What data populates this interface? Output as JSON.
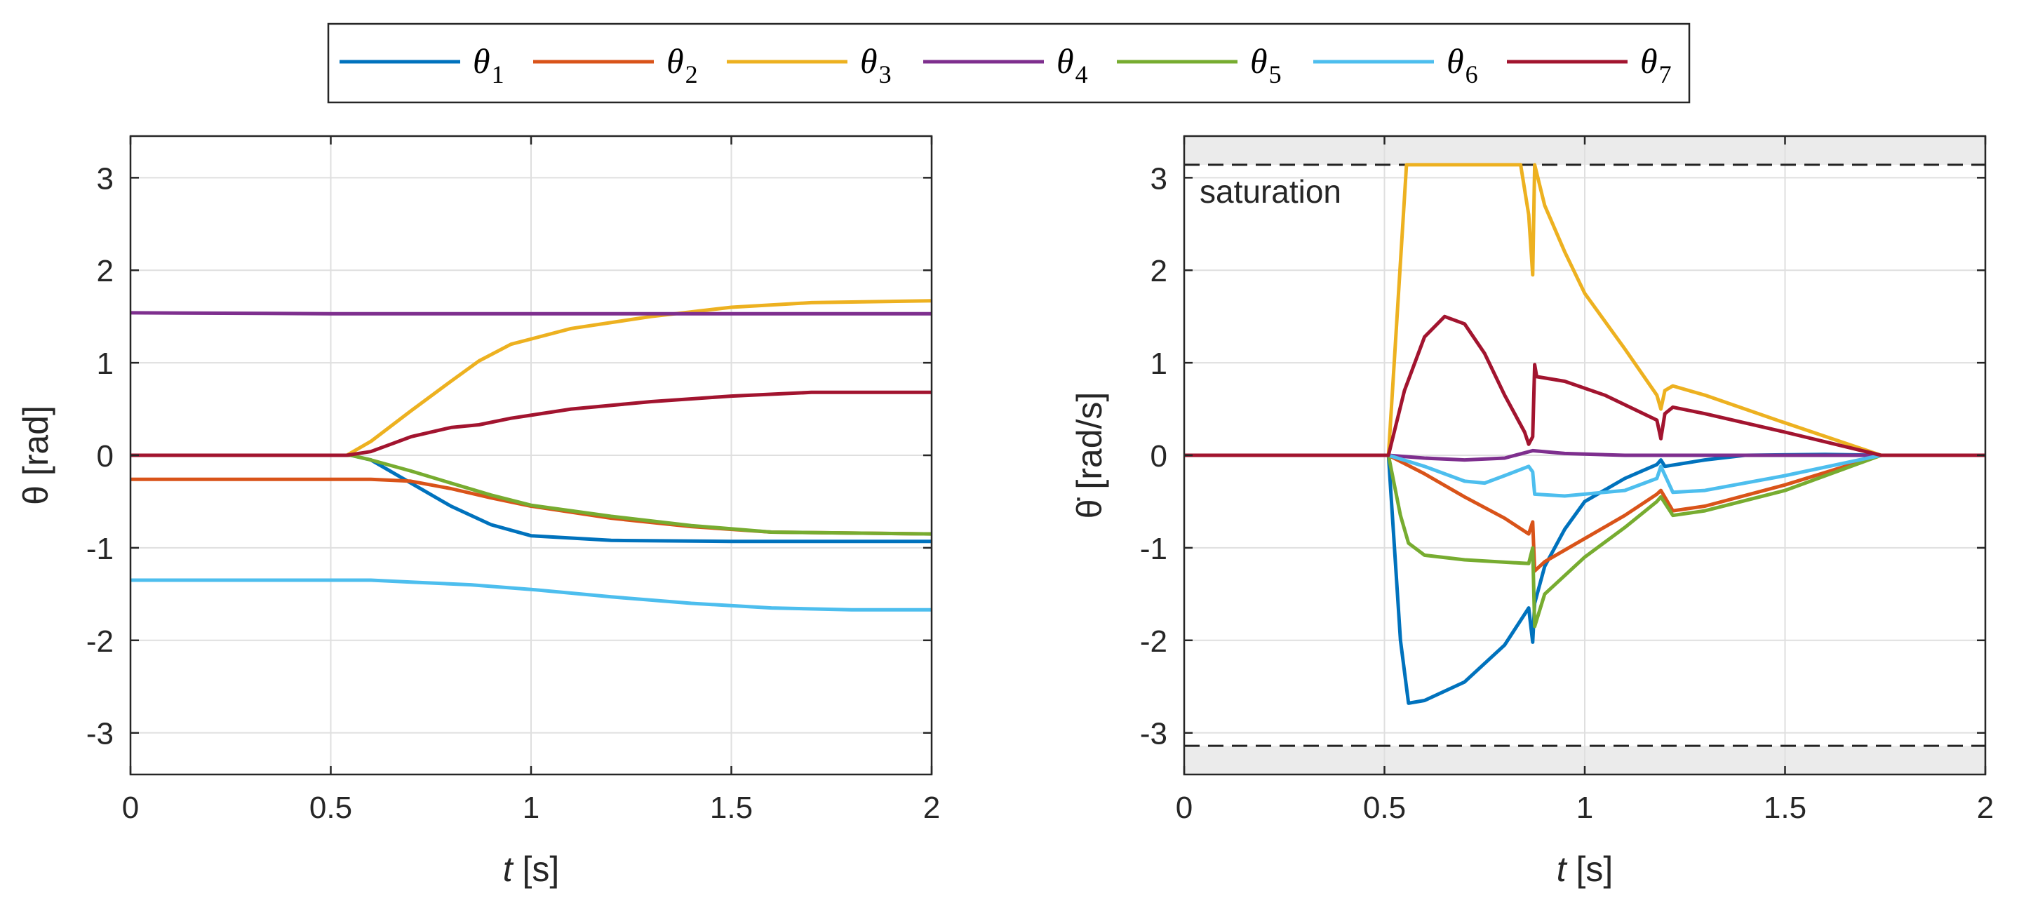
{
  "chart_data": [
    {
      "type": "line",
      "title": "",
      "xlabel": "t [s]",
      "xlabel_symbol": "t",
      "xlabel_unit": "[s]",
      "ylabel": "θ [rad]",
      "xlim": [
        0,
        2
      ],
      "ylim": [
        -3.45,
        3.45
      ],
      "xticks": [
        0,
        0.5,
        1,
        1.5,
        2
      ],
      "xtick_labels": [
        "0",
        "0.5",
        "1",
        "1.5",
        "2"
      ],
      "yticks": [
        -3,
        -2,
        -1,
        0,
        1,
        2,
        3
      ],
      "ytick_labels": [
        "-3",
        "-2",
        "-1",
        "0",
        "1",
        "2",
        "3"
      ],
      "grid": true,
      "series": [
        {
          "name": "θ1",
          "color": "#0072BD",
          "points": [
            [
              0,
              0
            ],
            [
              0.55,
              0
            ],
            [
              0.6,
              -0.05
            ],
            [
              0.7,
              -0.3
            ],
            [
              0.8,
              -0.55
            ],
            [
              0.9,
              -0.75
            ],
            [
              1.0,
              -0.87
            ],
            [
              1.2,
              -0.92
            ],
            [
              1.5,
              -0.93
            ],
            [
              2.0,
              -0.93
            ]
          ]
        },
        {
          "name": "θ2",
          "color": "#D95319",
          "points": [
            [
              0,
              -0.26
            ],
            [
              0.6,
              -0.26
            ],
            [
              0.7,
              -0.28
            ],
            [
              0.8,
              -0.36
            ],
            [
              0.9,
              -0.46
            ],
            [
              1.0,
              -0.55
            ],
            [
              1.2,
              -0.68
            ],
            [
              1.4,
              -0.77
            ],
            [
              1.6,
              -0.83
            ],
            [
              2.0,
              -0.85
            ]
          ]
        },
        {
          "name": "θ3",
          "color": "#EDB120",
          "points": [
            [
              0,
              0
            ],
            [
              0.54,
              0
            ],
            [
              0.6,
              0.15
            ],
            [
              0.7,
              0.48
            ],
            [
              0.8,
              0.8
            ],
            [
              0.87,
              1.02
            ],
            [
              0.95,
              1.2
            ],
            [
              1.1,
              1.37
            ],
            [
              1.3,
              1.5
            ],
            [
              1.5,
              1.6
            ],
            [
              1.7,
              1.65
            ],
            [
              2.0,
              1.67
            ]
          ]
        },
        {
          "name": "θ4",
          "color": "#7E2F8E",
          "points": [
            [
              0,
              1.54
            ],
            [
              0.5,
              1.53
            ],
            [
              1.0,
              1.53
            ],
            [
              2.0,
              1.53
            ]
          ]
        },
        {
          "name": "θ5",
          "color": "#77AC30",
          "points": [
            [
              0,
              0
            ],
            [
              0.55,
              0
            ],
            [
              0.6,
              -0.05
            ],
            [
              0.7,
              -0.17
            ],
            [
              0.8,
              -0.3
            ],
            [
              0.9,
              -0.43
            ],
            [
              1.0,
              -0.54
            ],
            [
              1.2,
              -0.66
            ],
            [
              1.4,
              -0.76
            ],
            [
              1.6,
              -0.83
            ],
            [
              2.0,
              -0.85
            ]
          ]
        },
        {
          "name": "θ6",
          "color": "#4DBEEE",
          "points": [
            [
              0,
              -1.35
            ],
            [
              0.6,
              -1.35
            ],
            [
              0.7,
              -1.37
            ],
            [
              0.85,
              -1.4
            ],
            [
              1.0,
              -1.45
            ],
            [
              1.2,
              -1.53
            ],
            [
              1.4,
              -1.6
            ],
            [
              1.6,
              -1.65
            ],
            [
              1.8,
              -1.67
            ],
            [
              2.0,
              -1.67
            ]
          ]
        },
        {
          "name": "θ7",
          "color": "#A2142F",
          "points": [
            [
              0,
              0
            ],
            [
              0.54,
              0
            ],
            [
              0.6,
              0.04
            ],
            [
              0.65,
              0.12
            ],
            [
              0.7,
              0.2
            ],
            [
              0.8,
              0.3
            ],
            [
              0.87,
              0.33
            ],
            [
              0.95,
              0.4
            ],
            [
              1.1,
              0.5
            ],
            [
              1.3,
              0.58
            ],
            [
              1.5,
              0.64
            ],
            [
              1.7,
              0.68
            ],
            [
              2.0,
              0.68
            ]
          ]
        }
      ]
    },
    {
      "type": "line",
      "title": "",
      "xlabel": "t [s]",
      "xlabel_symbol": "t",
      "xlabel_unit": "[s]",
      "ylabel": "θ̇ [rad/s]",
      "xlim": [
        0,
        2
      ],
      "ylim": [
        -3.45,
        3.45
      ],
      "xticks": [
        0,
        0.5,
        1,
        1.5,
        2
      ],
      "xtick_labels": [
        "0",
        "0.5",
        "1",
        "1.5",
        "2"
      ],
      "yticks": [
        -3,
        -2,
        -1,
        0,
        1,
        2,
        3
      ],
      "ytick_labels": [
        "-3",
        "-2",
        "-1",
        "0",
        "1",
        "2",
        "3"
      ],
      "grid": true,
      "saturation": {
        "value": 3.14,
        "label": "saturation"
      },
      "series": [
        {
          "name": "θ1",
          "color": "#0072BD",
          "points": [
            [
              0,
              0
            ],
            [
              0.51,
              0
            ],
            [
              0.54,
              -2.0
            ],
            [
              0.56,
              -2.68
            ],
            [
              0.6,
              -2.65
            ],
            [
              0.7,
              -2.45
            ],
            [
              0.8,
              -2.05
            ],
            [
              0.86,
              -1.65
            ],
            [
              0.87,
              -2.02
            ],
            [
              0.875,
              -1.6
            ],
            [
              0.9,
              -1.2
            ],
            [
              0.95,
              -0.8
            ],
            [
              1.0,
              -0.5
            ],
            [
              1.1,
              -0.25
            ],
            [
              1.18,
              -0.1
            ],
            [
              1.19,
              -0.05
            ],
            [
              1.2,
              -0.12
            ],
            [
              1.3,
              -0.05
            ],
            [
              1.4,
              0.0
            ],
            [
              1.6,
              0.01
            ],
            [
              1.74,
              0.0
            ],
            [
              2.0,
              0.0
            ]
          ]
        },
        {
          "name": "θ2",
          "color": "#D95319",
          "points": [
            [
              0,
              0
            ],
            [
              0.51,
              0
            ],
            [
              0.6,
              -0.2
            ],
            [
              0.7,
              -0.45
            ],
            [
              0.8,
              -0.68
            ],
            [
              0.86,
              -0.85
            ],
            [
              0.87,
              -0.72
            ],
            [
              0.875,
              -1.25
            ],
            [
              0.9,
              -1.15
            ],
            [
              1.0,
              -0.9
            ],
            [
              1.1,
              -0.65
            ],
            [
              1.18,
              -0.42
            ],
            [
              1.19,
              -0.38
            ],
            [
              1.22,
              -0.6
            ],
            [
              1.3,
              -0.55
            ],
            [
              1.5,
              -0.32
            ],
            [
              1.74,
              0.0
            ],
            [
              2.0,
              0.0
            ]
          ]
        },
        {
          "name": "θ3",
          "color": "#EDB120",
          "points": [
            [
              0,
              0
            ],
            [
              0.51,
              0
            ],
            [
              0.555,
              3.14
            ],
            [
              0.84,
              3.14
            ],
            [
              0.86,
              2.6
            ],
            [
              0.87,
              1.95
            ],
            [
              0.875,
              3.14
            ],
            [
              0.9,
              2.7
            ],
            [
              0.95,
              2.2
            ],
            [
              1.0,
              1.75
            ],
            [
              1.1,
              1.15
            ],
            [
              1.18,
              0.65
            ],
            [
              1.19,
              0.5
            ],
            [
              1.2,
              0.7
            ],
            [
              1.22,
              0.75
            ],
            [
              1.3,
              0.65
            ],
            [
              1.5,
              0.35
            ],
            [
              1.74,
              0.0
            ],
            [
              2.0,
              0.0
            ]
          ]
        },
        {
          "name": "θ4",
          "color": "#7E2F8E",
          "points": [
            [
              0,
              0
            ],
            [
              0.51,
              0
            ],
            [
              0.6,
              -0.03
            ],
            [
              0.7,
              -0.05
            ],
            [
              0.8,
              -0.03
            ],
            [
              0.87,
              0.05
            ],
            [
              0.95,
              0.02
            ],
            [
              1.1,
              0.0
            ],
            [
              1.74,
              0.0
            ],
            [
              2.0,
              0.0
            ]
          ]
        },
        {
          "name": "θ5",
          "color": "#77AC30",
          "points": [
            [
              0,
              0
            ],
            [
              0.51,
              0
            ],
            [
              0.54,
              -0.65
            ],
            [
              0.56,
              -0.95
            ],
            [
              0.6,
              -1.08
            ],
            [
              0.7,
              -1.13
            ],
            [
              0.86,
              -1.17
            ],
            [
              0.87,
              -1.0
            ],
            [
              0.875,
              -1.85
            ],
            [
              0.9,
              -1.5
            ],
            [
              1.0,
              -1.1
            ],
            [
              1.1,
              -0.78
            ],
            [
              1.18,
              -0.5
            ],
            [
              1.19,
              -0.45
            ],
            [
              1.22,
              -0.65
            ],
            [
              1.3,
              -0.6
            ],
            [
              1.5,
              -0.38
            ],
            [
              1.74,
              0.0
            ],
            [
              2.0,
              0.0
            ]
          ]
        },
        {
          "name": "θ6",
          "color": "#4DBEEE",
          "points": [
            [
              0,
              0
            ],
            [
              0.51,
              0
            ],
            [
              0.6,
              -0.12
            ],
            [
              0.7,
              -0.28
            ],
            [
              0.75,
              -0.3
            ],
            [
              0.8,
              -0.22
            ],
            [
              0.86,
              -0.12
            ],
            [
              0.87,
              -0.18
            ],
            [
              0.875,
              -0.42
            ],
            [
              0.95,
              -0.44
            ],
            [
              1.1,
              -0.38
            ],
            [
              1.18,
              -0.25
            ],
            [
              1.19,
              -0.12
            ],
            [
              1.22,
              -0.4
            ],
            [
              1.3,
              -0.38
            ],
            [
              1.5,
              -0.22
            ],
            [
              1.74,
              0.0
            ],
            [
              2.0,
              0.0
            ]
          ]
        },
        {
          "name": "θ7",
          "color": "#A2142F",
          "points": [
            [
              0,
              0
            ],
            [
              0.51,
              0
            ],
            [
              0.55,
              0.7
            ],
            [
              0.6,
              1.28
            ],
            [
              0.65,
              1.5
            ],
            [
              0.7,
              1.42
            ],
            [
              0.75,
              1.1
            ],
            [
              0.8,
              0.65
            ],
            [
              0.85,
              0.25
            ],
            [
              0.86,
              0.12
            ],
            [
              0.87,
              0.2
            ],
            [
              0.875,
              0.98
            ],
            [
              0.88,
              0.85
            ],
            [
              0.95,
              0.8
            ],
            [
              1.05,
              0.65
            ],
            [
              1.18,
              0.38
            ],
            [
              1.19,
              0.18
            ],
            [
              1.2,
              0.45
            ],
            [
              1.22,
              0.52
            ],
            [
              1.3,
              0.45
            ],
            [
              1.5,
              0.25
            ],
            [
              1.74,
              0.0
            ],
            [
              2.0,
              0.0
            ]
          ]
        }
      ]
    }
  ],
  "legend": [
    {
      "label": "θ",
      "sub": "1",
      "color": "#0072BD"
    },
    {
      "label": "θ",
      "sub": "2",
      "color": "#D95319"
    },
    {
      "label": "θ",
      "sub": "3",
      "color": "#EDB120"
    },
    {
      "label": "θ",
      "sub": "4",
      "color": "#7E2F8E"
    },
    {
      "label": "θ",
      "sub": "5",
      "color": "#77AC30"
    },
    {
      "label": "θ",
      "sub": "6",
      "color": "#4DBEEE"
    },
    {
      "label": "θ",
      "sub": "7",
      "color": "#A2142F"
    }
  ]
}
